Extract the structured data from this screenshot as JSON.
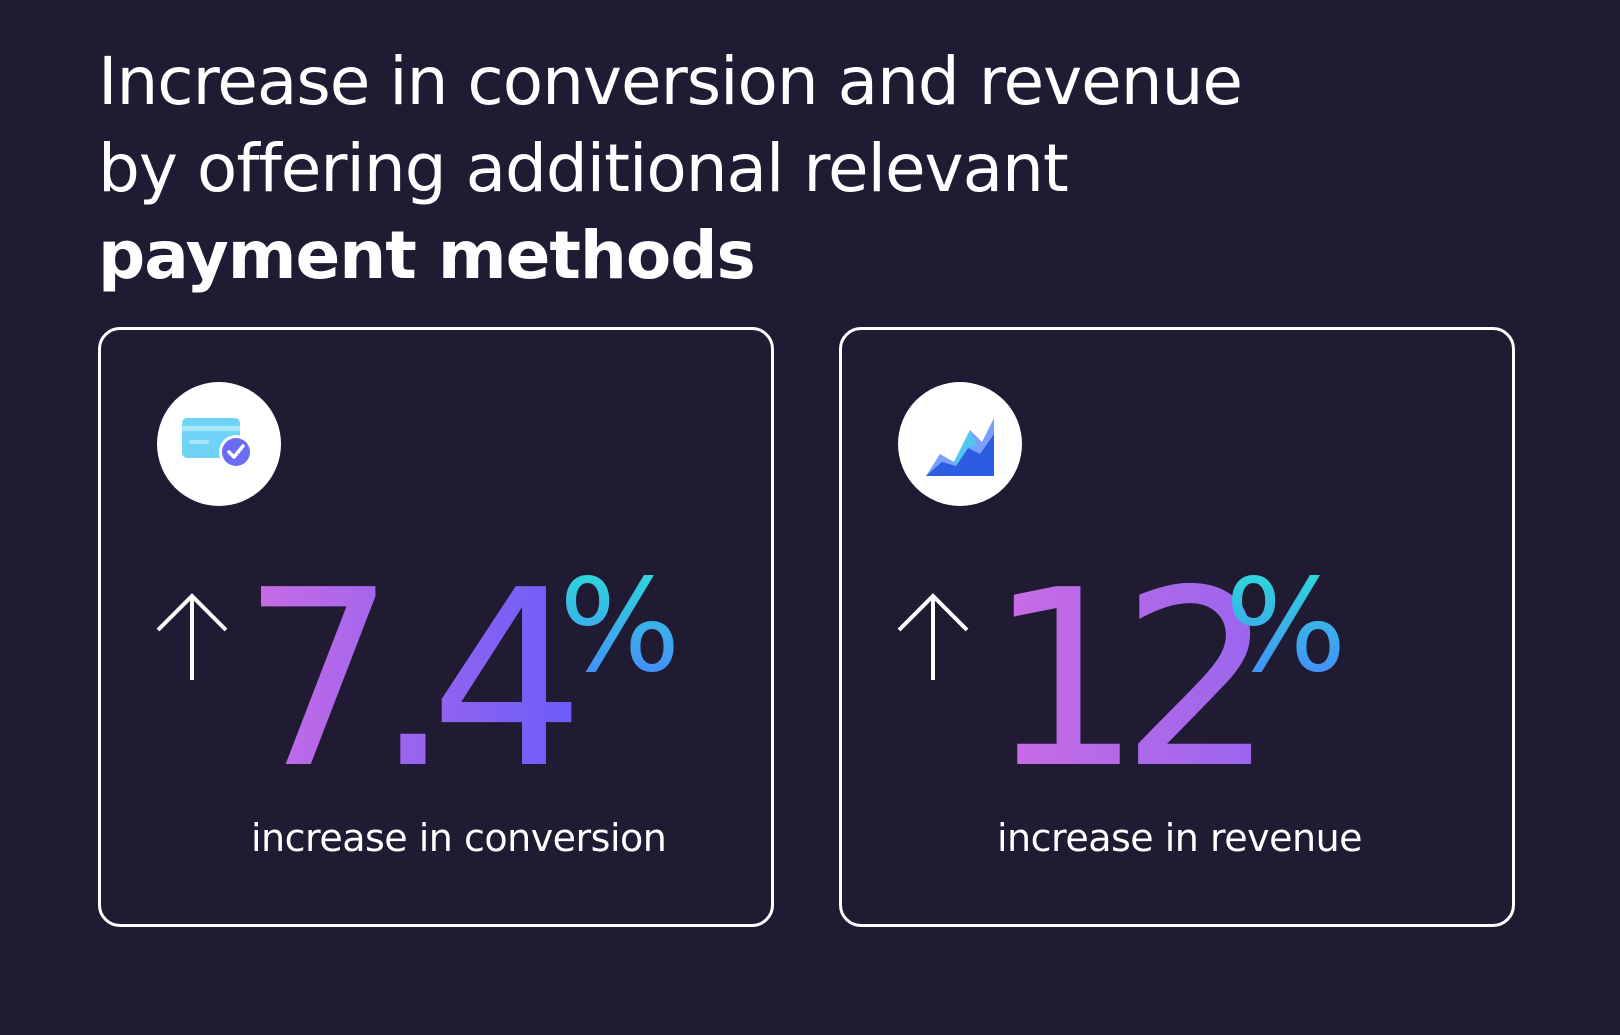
{
  "headline": {
    "line1": "Increase in conversion and revenue",
    "line2": "by offering additional relevant",
    "line3": "payment methods"
  },
  "stats": [
    {
      "icon": "credit-card-check-icon",
      "arrow": "↑",
      "value": "7.4",
      "unit": "%",
      "label": "increase in conversion"
    },
    {
      "icon": "area-chart-icon",
      "arrow": "↑",
      "value": "12",
      "unit": "%",
      "label": "increase in revenue"
    }
  ],
  "colors": {
    "background": "#201b33",
    "text": "#ffffff",
    "gradient_start": "#c96be6",
    "gradient_end": "#6b5cff",
    "percent_start": "#2be3d8",
    "percent_end": "#4a7dff"
  }
}
